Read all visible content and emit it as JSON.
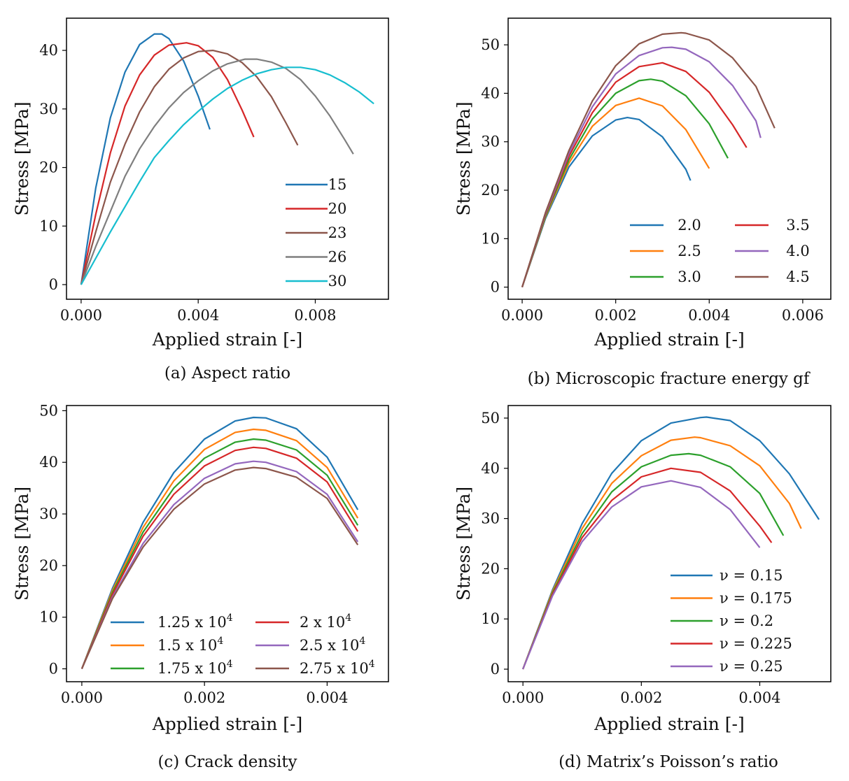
{
  "figure": {
    "colors": {
      "blue": "#1f77b4",
      "orange": "#ff7f0e",
      "green": "#2ca02c",
      "red": "#d62728",
      "purple": "#9467bd",
      "brown": "#8c564b",
      "gray": "#7f7f7f",
      "cyan": "#17becf"
    }
  },
  "chart_data": [
    {
      "type": "line",
      "caption": "(a) Aspect ratio",
      "xlabel": "Applied strain [-]",
      "ylabel": "Stress [MPa]",
      "xlim": [
        -0.0005,
        0.0105
      ],
      "ylim": [
        -2.5,
        45.5
      ],
      "xticks": [
        0,
        0.004,
        0.008
      ],
      "xtick_labels": [
        "0.000",
        "0.004",
        "0.008"
      ],
      "yticks": [
        0,
        10,
        20,
        30,
        40
      ],
      "ytick_labels": [
        "0",
        "10",
        "20",
        "30",
        "40"
      ],
      "legend": {
        "position": "lower-right",
        "columns": 1
      },
      "series": [
        {
          "name": "15",
          "color": "#1f77b4",
          "x": [
            0,
            0.0005,
            0.001,
            0.0015,
            0.002,
            0.0025,
            0.00275,
            0.003,
            0.0035,
            0.004,
            0.0044
          ],
          "y": [
            0,
            16.5,
            28.5,
            36.3,
            41.0,
            42.8,
            42.8,
            42.0,
            38.2,
            32.2,
            26.5
          ]
        },
        {
          "name": "20",
          "color": "#d62728",
          "x": [
            0,
            0.0005,
            0.001,
            0.0015,
            0.002,
            0.0025,
            0.003,
            0.0036,
            0.004,
            0.0045,
            0.005,
            0.0055,
            0.0059
          ],
          "y": [
            0,
            12.0,
            22.5,
            30.5,
            35.8,
            39.2,
            40.9,
            41.3,
            40.8,
            38.8,
            35.0,
            29.8,
            25.2
          ]
        },
        {
          "name": "23",
          "color": "#8c564b",
          "x": [
            0,
            0.0005,
            0.001,
            0.0015,
            0.002,
            0.0025,
            0.003,
            0.0035,
            0.004,
            0.0045,
            0.005,
            0.0055,
            0.006,
            0.0065,
            0.007,
            0.0074
          ],
          "y": [
            0,
            9.0,
            17.5,
            24.0,
            29.5,
            33.8,
            36.8,
            38.7,
            39.8,
            40.0,
            39.4,
            37.9,
            35.5,
            32.1,
            27.6,
            23.8
          ]
        },
        {
          "name": "26",
          "color": "#7f7f7f",
          "x": [
            0,
            0.0005,
            0.001,
            0.0015,
            0.002,
            0.0025,
            0.003,
            0.0035,
            0.004,
            0.0045,
            0.005,
            0.0056,
            0.006,
            0.0065,
            0.007,
            0.0075,
            0.008,
            0.0085,
            0.009,
            0.0093
          ],
          "y": [
            0,
            6.5,
            12.5,
            18.5,
            23.2,
            27.0,
            30.2,
            32.8,
            34.8,
            36.5,
            37.7,
            38.5,
            38.5,
            38.0,
            36.9,
            35.0,
            32.2,
            28.8,
            24.8,
            22.3
          ]
        },
        {
          "name": "30",
          "color": "#17becf",
          "x": [
            0,
            0.0005,
            0.001,
            0.0015,
            0.002,
            0.0025,
            0.003,
            0.0035,
            0.004,
            0.0045,
            0.005,
            0.0055,
            0.006,
            0.0065,
            0.007,
            0.0075,
            0.008,
            0.0085,
            0.009,
            0.0095,
            0.01
          ],
          "y": [
            0,
            4.5,
            9.0,
            13.3,
            17.6,
            21.7,
            24.6,
            27.3,
            29.6,
            31.7,
            33.5,
            34.9,
            36.0,
            36.7,
            37.1,
            37.1,
            36.7,
            35.8,
            34.5,
            32.9,
            30.9
          ]
        }
      ]
    },
    {
      "type": "line",
      "caption": "(b) Microscopic fracture energy gf",
      "xlabel": "Applied strain [-]",
      "ylabel": "Stress [MPa]",
      "xlim": [
        -0.0003,
        0.0066
      ],
      "ylim": [
        -2.5,
        55.5
      ],
      "xticks": [
        0,
        0.002,
        0.004,
        0.006
      ],
      "xtick_labels": [
        "0.000",
        "0.002",
        "0.004",
        "0.006"
      ],
      "yticks": [
        0,
        10,
        20,
        30,
        40,
        50
      ],
      "ytick_labels": [
        "0",
        "10",
        "20",
        "30",
        "40",
        "50"
      ],
      "legend": {
        "position": "lower-right",
        "columns": 2
      },
      "series": [
        {
          "name": "2.0",
          "color": "#1f77b4",
          "x": [
            0,
            0.0005,
            0.001,
            0.0015,
            0.002,
            0.00225,
            0.0025,
            0.003,
            0.0035,
            0.0036
          ],
          "y": [
            0,
            14.2,
            24.8,
            31.2,
            34.5,
            35.0,
            34.6,
            31.0,
            24.3,
            22.0
          ]
        },
        {
          "name": "2.5",
          "color": "#ff7f0e",
          "x": [
            0,
            0.0005,
            0.001,
            0.0015,
            0.002,
            0.0025,
            0.003,
            0.0035,
            0.004
          ],
          "y": [
            0,
            14.5,
            25.6,
            33.2,
            37.5,
            39.0,
            37.4,
            32.5,
            24.5
          ]
        },
        {
          "name": "3.0",
          "color": "#2ca02c",
          "x": [
            0,
            0.0005,
            0.001,
            0.0015,
            0.002,
            0.0025,
            0.00275,
            0.003,
            0.0035,
            0.004,
            0.0044
          ],
          "y": [
            0,
            14.7,
            26.3,
            34.7,
            40.0,
            42.6,
            42.9,
            42.5,
            39.5,
            33.7,
            26.6
          ]
        },
        {
          "name": "3.5",
          "color": "#d62728",
          "x": [
            0,
            0.0005,
            0.001,
            0.0015,
            0.002,
            0.0025,
            0.003,
            0.0035,
            0.004,
            0.0045,
            0.0048
          ],
          "y": [
            0,
            15.0,
            27.0,
            36.0,
            42.3,
            45.5,
            46.3,
            44.5,
            40.2,
            33.5,
            28.8
          ]
        },
        {
          "name": "4.0",
          "color": "#9467bd",
          "x": [
            0,
            0.0005,
            0.001,
            0.0015,
            0.002,
            0.0025,
            0.003,
            0.0032,
            0.0035,
            0.004,
            0.0045,
            0.005,
            0.0051
          ],
          "y": [
            0,
            15.2,
            27.6,
            37.2,
            44.0,
            47.8,
            49.4,
            49.5,
            49.1,
            46.5,
            41.6,
            34.3,
            30.8
          ]
        },
        {
          "name": "4.5",
          "color": "#8c564b",
          "x": [
            0,
            0.0005,
            0.001,
            0.0015,
            0.002,
            0.0025,
            0.003,
            0.0034,
            0.0035,
            0.004,
            0.0045,
            0.005,
            0.0054
          ],
          "y": [
            0,
            15.4,
            28.2,
            38.4,
            45.7,
            50.2,
            52.2,
            52.5,
            52.4,
            51.0,
            47.3,
            41.4,
            32.8
          ]
        }
      ]
    },
    {
      "type": "line",
      "caption": "(c) Crack density",
      "xlabel": "Applied strain [-]",
      "ylabel": "Stress [MPa]",
      "xlim": [
        -0.00025,
        0.005
      ],
      "ylim": [
        -2.5,
        51.0
      ],
      "xticks": [
        0,
        0.002,
        0.004
      ],
      "xtick_labels": [
        "0.000",
        "0.002",
        "0.004"
      ],
      "yticks": [
        0,
        10,
        20,
        30,
        40,
        50
      ],
      "ytick_labels": [
        "0",
        "10",
        "20",
        "30",
        "40",
        "50"
      ],
      "legend": {
        "position": "lower-right",
        "columns": 2
      },
      "series": [
        {
          "name": "1.25 x 10",
          "sup": "4",
          "color": "#1f77b4",
          "x": [
            0,
            0.0005,
            0.001,
            0.0015,
            0.002,
            0.0025,
            0.0028,
            0.003,
            0.0035,
            0.004,
            0.0045
          ],
          "y": [
            0,
            15.6,
            28.4,
            38.0,
            44.5,
            48.0,
            48.7,
            48.6,
            46.5,
            41.0,
            30.8
          ]
        },
        {
          "name": "1.5 x 10",
          "sup": "4",
          "color": "#ff7f0e",
          "x": [
            0,
            0.0005,
            0.001,
            0.0015,
            0.002,
            0.0025,
            0.0028,
            0.003,
            0.0035,
            0.004,
            0.0045
          ],
          "y": [
            0,
            15.2,
            27.4,
            36.4,
            42.5,
            45.8,
            46.4,
            46.2,
            44.2,
            39.0,
            29.2
          ]
        },
        {
          "name": "1.75 x 10",
          "sup": "4",
          "color": "#2ca02c",
          "x": [
            0,
            0.0005,
            0.001,
            0.0015,
            0.002,
            0.0025,
            0.0028,
            0.003,
            0.0035,
            0.004,
            0.0045
          ],
          "y": [
            0,
            14.8,
            26.5,
            35.0,
            40.8,
            43.9,
            44.5,
            44.3,
            42.4,
            37.5,
            27.8
          ]
        },
        {
          "name": "2 x 10",
          "sup": "4",
          "color": "#d62728",
          "x": [
            0,
            0.0005,
            0.001,
            0.0015,
            0.002,
            0.0025,
            0.0028,
            0.003,
            0.0035,
            0.004,
            0.0045
          ],
          "y": [
            0,
            14.4,
            25.7,
            33.8,
            39.3,
            42.3,
            42.9,
            42.7,
            40.8,
            36.2,
            26.6
          ]
        },
        {
          "name": "2.5 x 10",
          "sup": "4",
          "color": "#9467bd",
          "x": [
            0,
            0.0005,
            0.001,
            0.0015,
            0.002,
            0.0025,
            0.0028,
            0.003,
            0.0035,
            0.004,
            0.0045
          ],
          "y": [
            0,
            13.9,
            24.3,
            31.8,
            36.9,
            39.7,
            40.2,
            40.0,
            38.2,
            33.8,
            24.6
          ]
        },
        {
          "name": "2.75 x 10",
          "sup": "4",
          "color": "#8c564b",
          "x": [
            0,
            0.0005,
            0.001,
            0.0015,
            0.002,
            0.0025,
            0.0028,
            0.003,
            0.0035,
            0.004,
            0.0045
          ],
          "y": [
            0,
            13.6,
            23.6,
            30.9,
            35.8,
            38.5,
            39.0,
            38.8,
            37.1,
            33.0,
            24.0
          ]
        }
      ]
    },
    {
      "type": "line",
      "caption": "(d) Matrix’s Poisson’s ratio",
      "xlabel": "Applied strain [-]",
      "ylabel": "Stress [MPa]",
      "xlim": [
        -0.00025,
        0.0052
      ],
      "ylim": [
        -2.5,
        52.5
      ],
      "xticks": [
        0,
        0.002,
        0.004
      ],
      "xtick_labels": [
        "0.000",
        "0.002",
        "0.004"
      ],
      "yticks": [
        0,
        10,
        20,
        30,
        40,
        50
      ],
      "ytick_labels": [
        "0",
        "10",
        "20",
        "30",
        "40",
        "50"
      ],
      "legend": {
        "position": "lower-right",
        "columns": 1
      },
      "series": [
        {
          "name": "ν = 0.15",
          "color": "#1f77b4",
          "x": [
            0,
            0.0005,
            0.001,
            0.0015,
            0.002,
            0.0025,
            0.003,
            0.0031,
            0.0035,
            0.004,
            0.0045,
            0.005
          ],
          "y": [
            0,
            15.8,
            29.0,
            39.0,
            45.5,
            49.0,
            50.1,
            50.2,
            49.5,
            45.5,
            38.9,
            29.8
          ]
        },
        {
          "name": "ν = 0.175",
          "color": "#ff7f0e",
          "x": [
            0,
            0.0005,
            0.001,
            0.0015,
            0.002,
            0.0025,
            0.0029,
            0.003,
            0.0035,
            0.004,
            0.0045,
            0.0047
          ],
          "y": [
            0,
            15.5,
            28.0,
            37.0,
            42.5,
            45.6,
            46.2,
            46.1,
            44.5,
            40.5,
            33.0,
            28.0
          ]
        },
        {
          "name": "ν = 0.2",
          "color": "#2ca02c",
          "x": [
            0,
            0.0005,
            0.001,
            0.0015,
            0.002,
            0.0025,
            0.0028,
            0.003,
            0.0035,
            0.004,
            0.0044
          ],
          "y": [
            0,
            15.2,
            27.0,
            35.3,
            40.3,
            42.6,
            42.9,
            42.6,
            40.3,
            35.0,
            26.6
          ]
        },
        {
          "name": "ν = 0.225",
          "color": "#d62728",
          "x": [
            0,
            0.0005,
            0.001,
            0.0015,
            0.002,
            0.0025,
            0.003,
            0.0035,
            0.004,
            0.0042
          ],
          "y": [
            0,
            14.9,
            26.2,
            33.6,
            38.3,
            40.0,
            39.2,
            35.5,
            28.5,
            25.2
          ]
        },
        {
          "name": "ν = 0.25",
          "color": "#9467bd",
          "x": [
            0,
            0.0005,
            0.001,
            0.0015,
            0.002,
            0.0025,
            0.003,
            0.0035,
            0.004
          ],
          "y": [
            0,
            14.6,
            25.4,
            32.3,
            36.3,
            37.5,
            36.2,
            31.8,
            24.2
          ]
        }
      ]
    }
  ]
}
